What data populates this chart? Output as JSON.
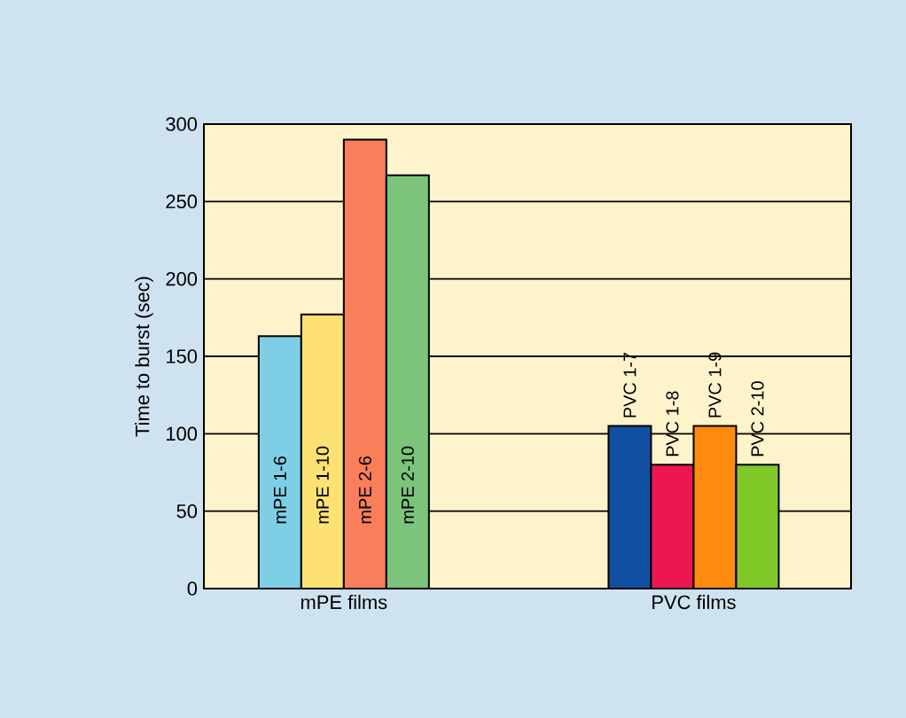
{
  "chart_data": {
    "type": "bar",
    "categories": [
      "mPE films",
      "PVC films"
    ],
    "ylabel": "Time to burst (sec)",
    "ylim": [
      0,
      300
    ],
    "yticks": [
      0,
      50,
      100,
      150,
      200,
      250,
      300
    ],
    "grid": "y",
    "series": [
      {
        "name": "mPE 1-6",
        "color": "#7ecfe6",
        "values": [
          163,
          null
        ]
      },
      {
        "name": "mPE 1-10",
        "color": "#fde273",
        "values": [
          177,
          null
        ]
      },
      {
        "name": "mPE 2-6",
        "color": "#f97f5a",
        "values": [
          290,
          null
        ]
      },
      {
        "name": "mPE 2-10",
        "color": "#7cc47c",
        "values": [
          267,
          null
        ]
      },
      {
        "name": "PVC 1-7",
        "color": "#1150a0",
        "values": [
          null,
          105
        ]
      },
      {
        "name": "PVC 1-8",
        "color": "#ee1650",
        "values": [
          null,
          80
        ]
      },
      {
        "name": "PVC 1-9",
        "color": "#ff8a10",
        "values": [
          null,
          105
        ]
      },
      {
        "name": "PVC 2-10",
        "color": "#80c828",
        "values": [
          null,
          80
        ]
      }
    ]
  }
}
